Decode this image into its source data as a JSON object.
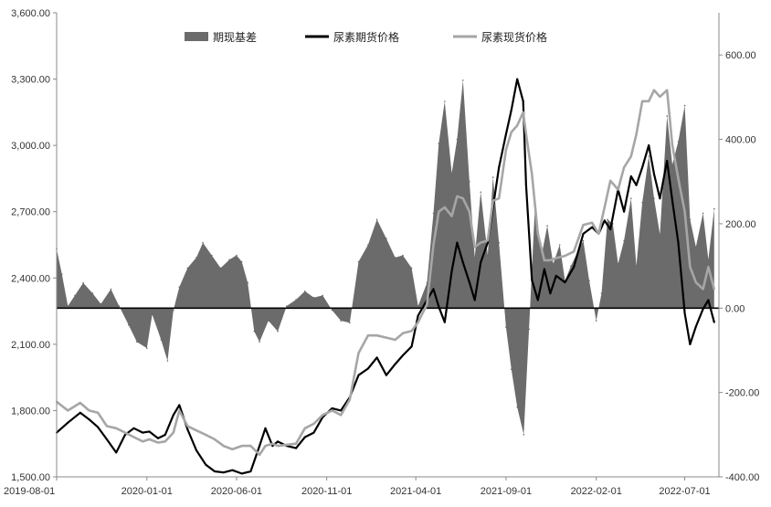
{
  "chart_data": {
    "type": "area",
    "x_labels": [
      "2019-08-01",
      "2020-01-01",
      "2020-06-01",
      "2020-11-01",
      "2021-04-01",
      "2021-09-01",
      "2022-02-01",
      "2022-07-01"
    ],
    "left_axis": {
      "ylim": [
        1500,
        3600
      ],
      "ticks": [
        "1,500.00",
        "1,800.00",
        "2,100.00",
        "2,400.00",
        "2,700.00",
        "3,000.00",
        "3,300.00",
        "3,600.00"
      ]
    },
    "right_axis": {
      "ylim": [
        -400,
        700
      ],
      "ticks": [
        "-400.00",
        "-200.00",
        "0.00",
        "200.00",
        "400.00",
        "600.00"
      ]
    },
    "colors": {
      "basis": "#6b6b6b",
      "futures": "#000000",
      "spot": "#a6a6a6"
    },
    "legend": [
      "期现基差",
      "尿素期货价格",
      "尿素现货价格"
    ],
    "series": [
      {
        "name": "期现基差",
        "type": "area",
        "axis": "right",
        "points": [
          [
            "2019-08-01",
            140
          ],
          [
            "2019-08-10",
            80
          ],
          [
            "2019-08-20",
            5
          ],
          [
            "2019-09-01",
            30
          ],
          [
            "2019-09-15",
            60
          ],
          [
            "2019-10-01",
            35
          ],
          [
            "2019-10-15",
            10
          ],
          [
            "2019-11-01",
            45
          ],
          [
            "2019-11-15",
            5
          ],
          [
            "2019-12-01",
            -40
          ],
          [
            "2019-12-15",
            -80
          ],
          [
            "2020-01-01",
            -95
          ],
          [
            "2020-01-10",
            -15
          ],
          [
            "2020-01-25",
            -75
          ],
          [
            "2020-02-05",
            -125
          ],
          [
            "2020-02-15",
            -5
          ],
          [
            "2020-02-25",
            50
          ],
          [
            "2020-03-10",
            95
          ],
          [
            "2020-03-25",
            120
          ],
          [
            "2020-04-05",
            155
          ],
          [
            "2020-04-20",
            125
          ],
          [
            "2020-05-05",
            95
          ],
          [
            "2020-05-20",
            115
          ],
          [
            "2020-06-01",
            125
          ],
          [
            "2020-06-10",
            110
          ],
          [
            "2020-06-20",
            60
          ],
          [
            "2020-07-01",
            -55
          ],
          [
            "2020-07-10",
            -80
          ],
          [
            "2020-07-25",
            -30
          ],
          [
            "2020-08-10",
            -55
          ],
          [
            "2020-08-25",
            5
          ],
          [
            "2020-09-10",
            20
          ],
          [
            "2020-09-25",
            40
          ],
          [
            "2020-10-10",
            25
          ],
          [
            "2020-10-25",
            30
          ],
          [
            "2020-11-10",
            -5
          ],
          [
            "2020-11-25",
            -30
          ],
          [
            "2020-12-10",
            -35
          ],
          [
            "2020-12-25",
            110
          ],
          [
            "2021-01-10",
            150
          ],
          [
            "2021-01-25",
            210
          ],
          [
            "2021-02-10",
            165
          ],
          [
            "2021-02-25",
            120
          ],
          [
            "2021-03-10",
            125
          ],
          [
            "2021-03-25",
            95
          ],
          [
            "2021-04-05",
            5
          ],
          [
            "2021-04-20",
            60
          ],
          [
            "2021-05-01",
            225
          ],
          [
            "2021-05-10",
            390
          ],
          [
            "2021-05-20",
            490
          ],
          [
            "2021-06-01",
            320
          ],
          [
            "2021-06-10",
            400
          ],
          [
            "2021-06-20",
            540
          ],
          [
            "2021-07-01",
            300
          ],
          [
            "2021-07-10",
            120
          ],
          [
            "2021-07-20",
            275
          ],
          [
            "2021-08-01",
            125
          ],
          [
            "2021-08-10",
            310
          ],
          [
            "2021-08-20",
            155
          ],
          [
            "2021-09-01",
            -45
          ],
          [
            "2021-09-10",
            -145
          ],
          [
            "2021-09-20",
            -235
          ],
          [
            "2021-10-01",
            -300
          ],
          [
            "2021-10-10",
            -50
          ],
          [
            "2021-10-20",
            240
          ],
          [
            "2021-11-01",
            130
          ],
          [
            "2021-11-10",
            195
          ],
          [
            "2021-11-20",
            105
          ],
          [
            "2021-12-01",
            150
          ],
          [
            "2021-12-10",
            65
          ],
          [
            "2021-12-20",
            100
          ],
          [
            "2022-01-01",
            135
          ],
          [
            "2022-01-10",
            160
          ],
          [
            "2022-01-20",
            65
          ],
          [
            "2022-02-01",
            -30
          ],
          [
            "2022-02-10",
            35
          ],
          [
            "2022-02-20",
            210
          ],
          [
            "2022-03-01",
            200
          ],
          [
            "2022-03-10",
            105
          ],
          [
            "2022-03-20",
            160
          ],
          [
            "2022-04-01",
            260
          ],
          [
            "2022-04-10",
            100
          ],
          [
            "2022-04-20",
            250
          ],
          [
            "2022-05-01",
            360
          ],
          [
            "2022-05-10",
            260
          ],
          [
            "2022-05-20",
            175
          ],
          [
            "2022-06-01",
            455
          ],
          [
            "2022-06-10",
            340
          ],
          [
            "2022-06-20",
            395
          ],
          [
            "2022-07-01",
            480
          ],
          [
            "2022-07-10",
            210
          ],
          [
            "2022-07-20",
            145
          ],
          [
            "2022-08-01",
            225
          ],
          [
            "2022-08-10",
            115
          ],
          [
            "2022-08-20",
            235
          ]
        ]
      },
      {
        "name": "尿素期货价格",
        "type": "line",
        "axis": "left",
        "points": [
          [
            "2019-08-01",
            1700
          ],
          [
            "2019-08-20",
            1745
          ],
          [
            "2019-09-10",
            1790
          ],
          [
            "2019-09-25",
            1760
          ],
          [
            "2019-10-10",
            1725
          ],
          [
            "2019-10-25",
            1670
          ],
          [
            "2019-11-10",
            1610
          ],
          [
            "2019-11-25",
            1690
          ],
          [
            "2019-12-10",
            1720
          ],
          [
            "2019-12-25",
            1700
          ],
          [
            "2020-01-05",
            1705
          ],
          [
            "2020-01-20",
            1675
          ],
          [
            "2020-02-01",
            1690
          ],
          [
            "2020-02-15",
            1780
          ],
          [
            "2020-02-25",
            1825
          ],
          [
            "2020-03-10",
            1715
          ],
          [
            "2020-03-25",
            1620
          ],
          [
            "2020-04-10",
            1555
          ],
          [
            "2020-04-25",
            1525
          ],
          [
            "2020-05-10",
            1520
          ],
          [
            "2020-05-25",
            1530
          ],
          [
            "2020-06-10",
            1515
          ],
          [
            "2020-06-25",
            1525
          ],
          [
            "2020-07-10",
            1640
          ],
          [
            "2020-07-20",
            1720
          ],
          [
            "2020-08-01",
            1640
          ],
          [
            "2020-08-10",
            1660
          ],
          [
            "2020-08-25",
            1640
          ],
          [
            "2020-09-10",
            1630
          ],
          [
            "2020-09-25",
            1680
          ],
          [
            "2020-10-10",
            1700
          ],
          [
            "2020-10-25",
            1770
          ],
          [
            "2020-11-10",
            1810
          ],
          [
            "2020-11-25",
            1800
          ],
          [
            "2020-12-10",
            1860
          ],
          [
            "2020-12-25",
            1960
          ],
          [
            "2021-01-10",
            1990
          ],
          [
            "2021-01-25",
            2040
          ],
          [
            "2021-02-10",
            1960
          ],
          [
            "2021-02-25",
            2010
          ],
          [
            "2021-03-10",
            2050
          ],
          [
            "2021-03-25",
            2090
          ],
          [
            "2021-04-05",
            2230
          ],
          [
            "2021-04-20",
            2300
          ],
          [
            "2021-05-01",
            2350
          ],
          [
            "2021-05-10",
            2270
          ],
          [
            "2021-05-20",
            2200
          ],
          [
            "2021-06-01",
            2430
          ],
          [
            "2021-06-10",
            2560
          ],
          [
            "2021-06-20",
            2470
          ],
          [
            "2021-07-01",
            2380
          ],
          [
            "2021-07-10",
            2300
          ],
          [
            "2021-07-20",
            2470
          ],
          [
            "2021-08-01",
            2560
          ],
          [
            "2021-08-10",
            2720
          ],
          [
            "2021-08-20",
            2900
          ],
          [
            "2021-09-01",
            3050
          ],
          [
            "2021-09-10",
            3160
          ],
          [
            "2021-09-20",
            3300
          ],
          [
            "2021-09-30",
            3200
          ],
          [
            "2021-10-05",
            2820
          ],
          [
            "2021-10-15",
            2390
          ],
          [
            "2021-10-25",
            2300
          ],
          [
            "2021-11-05",
            2440
          ],
          [
            "2021-11-15",
            2330
          ],
          [
            "2021-11-25",
            2410
          ],
          [
            "2021-12-10",
            2380
          ],
          [
            "2021-12-25",
            2450
          ],
          [
            "2022-01-10",
            2600
          ],
          [
            "2022-01-25",
            2630
          ],
          [
            "2022-02-05",
            2600
          ],
          [
            "2022-02-15",
            2660
          ],
          [
            "2022-02-25",
            2620
          ],
          [
            "2022-03-10",
            2800
          ],
          [
            "2022-03-20",
            2700
          ],
          [
            "2022-04-01",
            2860
          ],
          [
            "2022-04-10",
            2820
          ],
          [
            "2022-04-20",
            2900
          ],
          [
            "2022-05-01",
            3000
          ],
          [
            "2022-05-10",
            2870
          ],
          [
            "2022-05-20",
            2760
          ],
          [
            "2022-06-01",
            2930
          ],
          [
            "2022-06-10",
            2750
          ],
          [
            "2022-06-20",
            2560
          ],
          [
            "2022-07-01",
            2240
          ],
          [
            "2022-07-10",
            2100
          ],
          [
            "2022-07-20",
            2180
          ],
          [
            "2022-08-01",
            2260
          ],
          [
            "2022-08-10",
            2300
          ],
          [
            "2022-08-20",
            2200
          ]
        ]
      },
      {
        "name": "尿素现货价格",
        "type": "line",
        "axis": "left",
        "points": [
          [
            "2019-08-01",
            1840
          ],
          [
            "2019-08-20",
            1800
          ],
          [
            "2019-09-10",
            1835
          ],
          [
            "2019-09-25",
            1800
          ],
          [
            "2019-10-10",
            1790
          ],
          [
            "2019-10-25",
            1730
          ],
          [
            "2019-11-10",
            1720
          ],
          [
            "2019-11-25",
            1700
          ],
          [
            "2019-12-10",
            1680
          ],
          [
            "2019-12-25",
            1660
          ],
          [
            "2020-01-05",
            1670
          ],
          [
            "2020-01-20",
            1655
          ],
          [
            "2020-02-01",
            1660
          ],
          [
            "2020-02-15",
            1700
          ],
          [
            "2020-02-25",
            1800
          ],
          [
            "2020-03-10",
            1730
          ],
          [
            "2020-03-25",
            1710
          ],
          [
            "2020-04-10",
            1690
          ],
          [
            "2020-04-25",
            1670
          ],
          [
            "2020-05-10",
            1640
          ],
          [
            "2020-05-25",
            1625
          ],
          [
            "2020-06-10",
            1640
          ],
          [
            "2020-06-25",
            1640
          ],
          [
            "2020-07-10",
            1600
          ],
          [
            "2020-07-20",
            1640
          ],
          [
            "2020-08-01",
            1650
          ],
          [
            "2020-08-10",
            1640
          ],
          [
            "2020-08-25",
            1645
          ],
          [
            "2020-09-10",
            1650
          ],
          [
            "2020-09-25",
            1720
          ],
          [
            "2020-10-10",
            1740
          ],
          [
            "2020-10-25",
            1780
          ],
          [
            "2020-11-10",
            1800
          ],
          [
            "2020-11-25",
            1780
          ],
          [
            "2020-12-10",
            1850
          ],
          [
            "2020-12-25",
            2060
          ],
          [
            "2021-01-10",
            2140
          ],
          [
            "2021-01-25",
            2140
          ],
          [
            "2021-02-10",
            2130
          ],
          [
            "2021-02-25",
            2120
          ],
          [
            "2021-03-10",
            2150
          ],
          [
            "2021-03-25",
            2160
          ],
          [
            "2021-04-05",
            2200
          ],
          [
            "2021-04-20",
            2280
          ],
          [
            "2021-05-01",
            2550
          ],
          [
            "2021-05-10",
            2700
          ],
          [
            "2021-05-20",
            2720
          ],
          [
            "2021-06-01",
            2680
          ],
          [
            "2021-06-10",
            2770
          ],
          [
            "2021-06-20",
            2760
          ],
          [
            "2021-07-01",
            2700
          ],
          [
            "2021-07-10",
            2540
          ],
          [
            "2021-07-20",
            2560
          ],
          [
            "2021-08-01",
            2570
          ],
          [
            "2021-08-10",
            2750
          ],
          [
            "2021-08-20",
            2760
          ],
          [
            "2021-09-01",
            2980
          ],
          [
            "2021-09-10",
            3060
          ],
          [
            "2021-09-20",
            3090
          ],
          [
            "2021-09-30",
            3150
          ],
          [
            "2021-10-05",
            3050
          ],
          [
            "2021-10-15",
            2870
          ],
          [
            "2021-10-25",
            2600
          ],
          [
            "2021-11-05",
            2480
          ],
          [
            "2021-11-15",
            2480
          ],
          [
            "2021-11-25",
            2490
          ],
          [
            "2021-12-10",
            2500
          ],
          [
            "2021-12-25",
            2520
          ],
          [
            "2022-01-10",
            2640
          ],
          [
            "2022-01-25",
            2650
          ],
          [
            "2022-02-05",
            2600
          ],
          [
            "2022-02-15",
            2720
          ],
          [
            "2022-02-25",
            2840
          ],
          [
            "2022-03-10",
            2800
          ],
          [
            "2022-03-20",
            2900
          ],
          [
            "2022-04-01",
            2950
          ],
          [
            "2022-04-10",
            3050
          ],
          [
            "2022-04-20",
            3200
          ],
          [
            "2022-05-01",
            3200
          ],
          [
            "2022-05-10",
            3250
          ],
          [
            "2022-05-20",
            3220
          ],
          [
            "2022-06-01",
            3250
          ],
          [
            "2022-06-10",
            3000
          ],
          [
            "2022-06-20",
            2850
          ],
          [
            "2022-07-01",
            2700
          ],
          [
            "2022-07-10",
            2450
          ],
          [
            "2022-07-20",
            2380
          ],
          [
            "2022-08-01",
            2350
          ],
          [
            "2022-08-10",
            2450
          ],
          [
            "2022-08-20",
            2350
          ]
        ]
      }
    ]
  }
}
